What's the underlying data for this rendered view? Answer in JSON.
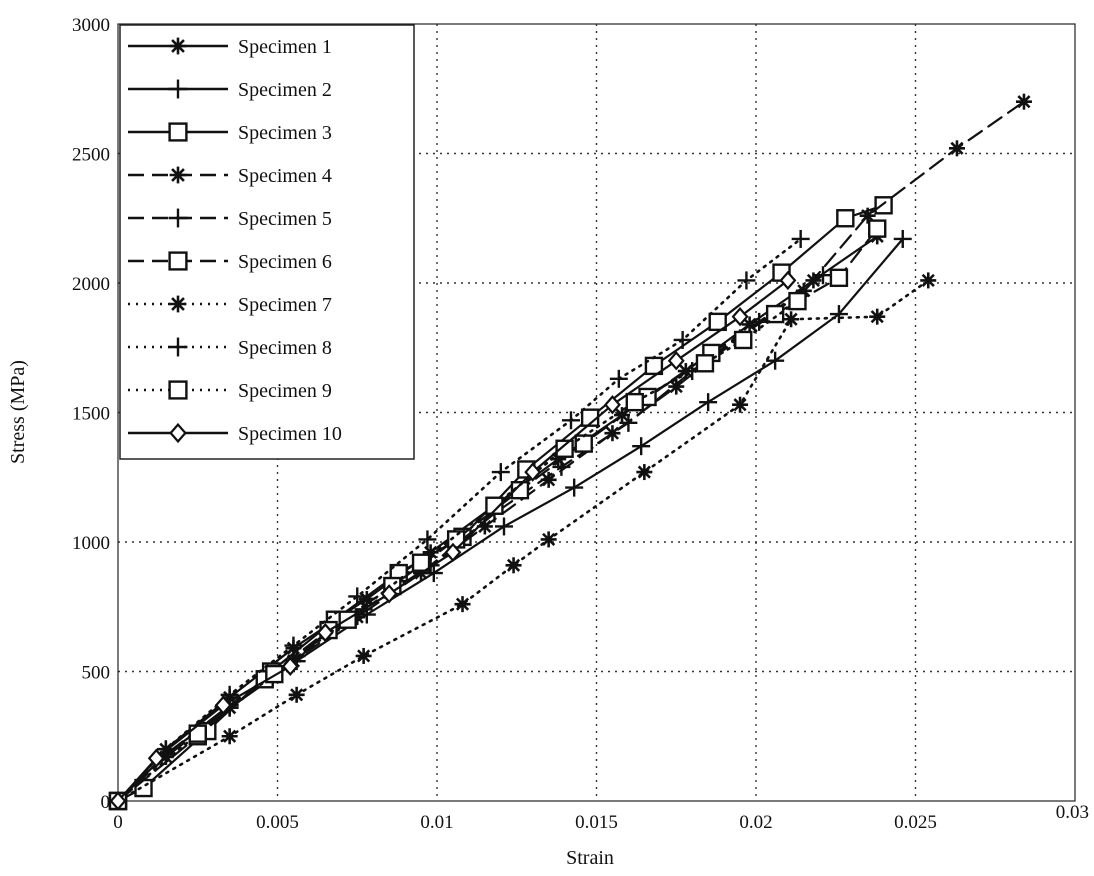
{
  "chart_data": {
    "type": "line",
    "title": "",
    "xlabel": "Strain",
    "ylabel": "Stress (MPa)",
    "xlim": [
      0,
      0.03
    ],
    "ylim": [
      0,
      3000
    ],
    "x_ticks": [
      "0",
      "0.005",
      "0.01",
      "0.015",
      "0.02",
      "0.025",
      "0.03"
    ],
    "x_tick_values": [
      0,
      0.005,
      0.01,
      0.015,
      0.02,
      0.025,
      0.03
    ],
    "y_ticks": [
      "0",
      "500",
      "1000",
      "1500",
      "2000",
      "2500",
      "3000"
    ],
    "y_tick_values": [
      0,
      500,
      1000,
      1500,
      2000,
      2500,
      3000
    ],
    "grid": true,
    "legend_position": "top-left",
    "series": [
      {
        "name": "Specimen 1",
        "line": "solid",
        "marker": "star",
        "x": [
          0,
          0.0015,
          0.0035,
          0.0055,
          0.0078,
          0.0098,
          0.0118,
          0.0138,
          0.0158,
          0.0178,
          0.0198,
          0.0218,
          0.0238
        ],
        "y": [
          0,
          200,
          400,
          590,
          780,
          960,
          1140,
          1320,
          1490,
          1660,
          1840,
          2010,
          2180
        ]
      },
      {
        "name": "Specimen 2",
        "line": "solid",
        "marker": "plus",
        "x": [
          0,
          0.0015,
          0.0035,
          0.0056,
          0.0078,
          0.0099,
          0.0121,
          0.0143,
          0.0164,
          0.0185,
          0.0206,
          0.0226,
          0.0246
        ],
        "y": [
          0,
          180,
          360,
          540,
          720,
          880,
          1060,
          1210,
          1370,
          1540,
          1700,
          1880,
          2170
        ]
      },
      {
        "name": "Specimen 3",
        "line": "solid",
        "marker": "square",
        "x": [
          0,
          0.0008,
          0.0028,
          0.0048,
          0.0068,
          0.0088,
          0.0108,
          0.0128,
          0.0148,
          0.0168,
          0.0188,
          0.0208,
          0.0228,
          0.024
        ],
        "y": [
          0,
          50,
          270,
          500,
          700,
          880,
          1020,
          1280,
          1480,
          1680,
          1850,
          2040,
          2250,
          2300
        ]
      },
      {
        "name": "Specimen 4",
        "line": "dashed",
        "marker": "star",
        "x": [
          0,
          0.0015,
          0.0035,
          0.0055,
          0.0075,
          0.0095,
          0.0115,
          0.0135,
          0.0155,
          0.0175,
          0.0195,
          0.0215,
          0.0235,
          0.0263,
          0.0284
        ],
        "y": [
          0,
          170,
          360,
          540,
          710,
          880,
          1060,
          1240,
          1420,
          1600,
          1790,
          1970,
          2260,
          2520,
          2700
        ]
      },
      {
        "name": "Specimen 5",
        "line": "dashed",
        "marker": "plus",
        "x": [
          0,
          0.0015,
          0.0035,
          0.0056,
          0.0077,
          0.0098,
          0.0118,
          0.0139,
          0.016,
          0.018,
          0.0201,
          0.0221
        ],
        "y": [
          0,
          180,
          370,
          560,
          740,
          910,
          1110,
          1290,
          1460,
          1660,
          1850,
          2030
        ]
      },
      {
        "name": "Specimen 6",
        "line": "dashed",
        "marker": "square",
        "x": [
          0,
          0.0025,
          0.0046,
          0.0066,
          0.0086,
          0.0106,
          0.0126,
          0.0146,
          0.0166,
          0.0186,
          0.0206,
          0.0226,
          0.0238
        ],
        "y": [
          0,
          250,
          470,
          660,
          830,
          1010,
          1200,
          1380,
          1560,
          1730,
          1880,
          2020,
          2210
        ]
      },
      {
        "name": "Specimen 7",
        "line": "dotted",
        "marker": "star",
        "x": [
          0,
          0.0035,
          0.0056,
          0.0077,
          0.0108,
          0.0124,
          0.0135,
          0.0165,
          0.0195,
          0.0211,
          0.0238,
          0.0254
        ],
        "y": [
          0,
          250,
          410,
          560,
          760,
          910,
          1010,
          1270,
          1530,
          1860,
          1870,
          2010
        ]
      },
      {
        "name": "Specimen 8",
        "line": "dotted",
        "marker": "plus",
        "x": [
          0,
          0.0015,
          0.0035,
          0.0055,
          0.0075,
          0.0097,
          0.012,
          0.0142,
          0.0157,
          0.0177,
          0.0197,
          0.0214
        ],
        "y": [
          0,
          200,
          410,
          600,
          790,
          1010,
          1270,
          1470,
          1630,
          1780,
          2010,
          2170
        ]
      },
      {
        "name": "Specimen 9",
        "line": "dotted",
        "marker": "square",
        "x": [
          0,
          0.0025,
          0.0049,
          0.0072,
          0.0095,
          0.0118,
          0.014,
          0.0162,
          0.0184,
          0.0196,
          0.0213
        ],
        "y": [
          0,
          260,
          490,
          700,
          920,
          1140,
          1360,
          1540,
          1690,
          1780,
          1930
        ]
      },
      {
        "name": "Specimen 10",
        "line": "solid",
        "marker": "diamond",
        "x": [
          0,
          0.0012,
          0.0033,
          0.0054,
          0.0065,
          0.0085,
          0.0105,
          0.013,
          0.0155,
          0.0175,
          0.0195,
          0.021
        ],
        "y": [
          0,
          165,
          370,
          520,
          650,
          800,
          960,
          1270,
          1530,
          1700,
          1870,
          2010
        ]
      }
    ]
  }
}
